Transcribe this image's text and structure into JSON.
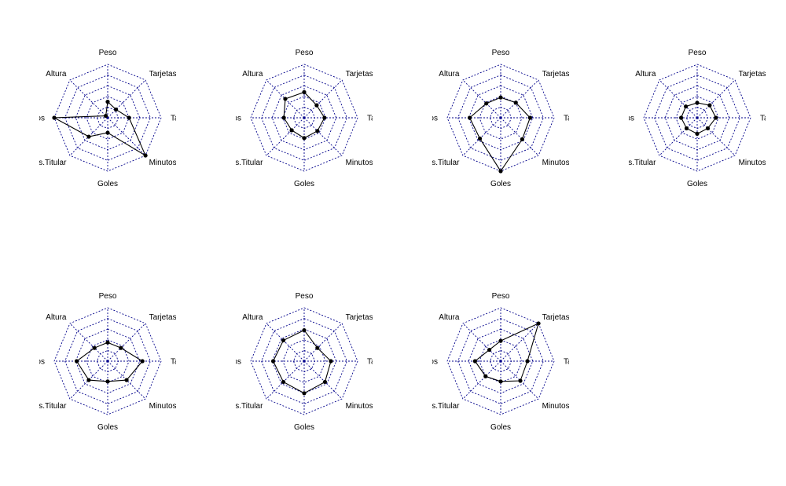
{
  "colors": {
    "grid": "#00008b",
    "series": "#000000",
    "background": "#ffffff"
  },
  "chart_data": {
    "type": "radar",
    "grid": true,
    "levels": 5,
    "range": [
      0,
      1
    ],
    "axes": [
      "Peso",
      "Tarjetas.Rojas",
      "Tarjetas.A",
      "Minutos.Jugado",
      "Goles",
      "Juegos.Titular",
      "s.Jugados",
      "Altura"
    ],
    "axis_labels_shown": [
      "Peso",
      "Tarjetas.Rojas",
      "Tarjetas.A",
      "Minutos.Jugado",
      "Goles",
      "uegos.Titular",
      "s.Jugados",
      "Altura"
    ],
    "series": [
      {
        "values": [
          0.3,
          0.22,
          0.4,
          1.0,
          0.28,
          0.5,
          1.0,
          0.05
        ]
      },
      {
        "values": [
          0.48,
          0.33,
          0.38,
          0.35,
          0.38,
          0.33,
          0.38,
          0.5
        ]
      },
      {
        "values": [
          0.38,
          0.4,
          0.55,
          0.57,
          1.0,
          0.55,
          0.58,
          0.38
        ]
      },
      {
        "values": [
          0.28,
          0.33,
          0.35,
          0.28,
          0.3,
          0.28,
          0.3,
          0.3
        ]
      },
      {
        "values": [
          0.35,
          0.35,
          0.65,
          0.5,
          0.38,
          0.5,
          0.58,
          0.35
        ]
      },
      {
        "values": [
          0.58,
          0.35,
          0.5,
          0.55,
          0.6,
          0.55,
          0.58,
          0.55
        ]
      },
      {
        "values": [
          0.38,
          1.0,
          0.5,
          0.52,
          0.38,
          0.4,
          0.48,
          0.3
        ]
      }
    ]
  }
}
